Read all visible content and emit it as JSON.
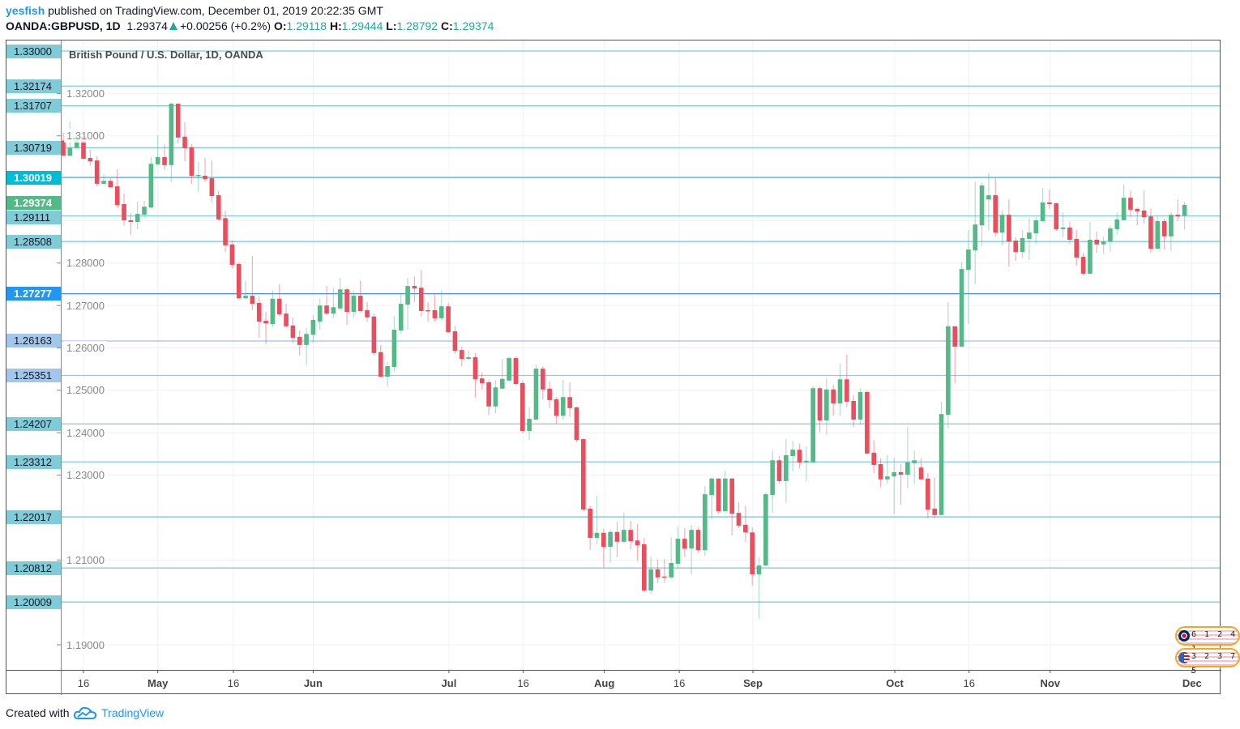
{
  "header": {
    "publisher": "yesfish",
    "published_text": "published on TradingView.com, December 01, 2019 20:22:35 GMT",
    "symbol": "OANDA:GBPUSD, 1D",
    "last": "1.29374",
    "change": "+0.00256 (+0.2%)",
    "o_label": "O:",
    "o": "1.29118",
    "h_label": "H:",
    "h": "1.29444",
    "l_label": "L:",
    "l": "1.28792",
    "c_label": "C:",
    "c": "1.29374"
  },
  "legend": "British Pound / U.S. Dollar, 1D, OANDA",
  "footer": {
    "created_with": "Created with",
    "brand": "TradingView"
  },
  "events": [
    {
      "flag": "uk-flag-icon",
      "counts": "6 1 2 4 1"
    },
    {
      "flag": "us-flag-icon",
      "counts": "3 2 3 7 5"
    }
  ],
  "colors": {
    "up": "#53b987",
    "down": "#eb4d5c",
    "level": "#80cbd8",
    "grid": "#eef2f6"
  },
  "chart_data": {
    "type": "candlestick",
    "title": "British Pound / U.S. Dollar, 1D, OANDA",
    "ylim": [
      1.19,
      1.33
    ],
    "grid": true,
    "y_ticks": [
      "1.32000",
      "1.31000",
      "1.28000",
      "1.27000",
      "1.26000",
      "1.25000",
      "1.24000",
      "1.23000",
      "1.21000",
      "1.19000"
    ],
    "x_ticks": [
      {
        "label": "16",
        "index": 3
      },
      {
        "label": "May",
        "index": 14
      },
      {
        "label": "16",
        "index": 25.2
      },
      {
        "label": "Jun",
        "index": 37
      },
      {
        "label": "Jul",
        "index": 57.1
      },
      {
        "label": "16",
        "index": 68.1
      },
      {
        "label": "Aug",
        "index": 80.1
      },
      {
        "label": "16",
        "index": 91.2
      },
      {
        "label": "Sep",
        "index": 102.1
      },
      {
        "label": "Oct",
        "index": 123.1
      },
      {
        "label": "16",
        "index": 134.1
      },
      {
        "label": "Nov",
        "index": 146.1
      },
      {
        "label": "Dec",
        "index": 167.1
      }
    ],
    "levels": [
      {
        "label": "1.33000",
        "style": "level"
      },
      {
        "label": "1.32174",
        "style": "level"
      },
      {
        "label": "1.31707",
        "style": "level"
      },
      {
        "label": "1.30719",
        "style": "level"
      },
      {
        "label": "1.30019",
        "style": "cyan"
      },
      {
        "label": "1.29374",
        "style": "last"
      },
      {
        "label": "1.29111",
        "style": "level"
      },
      {
        "label": "1.28508",
        "style": "level"
      },
      {
        "label": "1.27277",
        "style": "blue"
      },
      {
        "label": "1.26163",
        "style": "lightblue"
      },
      {
        "label": "1.25351",
        "style": "lightblue"
      },
      {
        "label": "1.24207",
        "style": "level"
      },
      {
        "label": "1.23312",
        "style": "level"
      },
      {
        "label": "1.22017",
        "style": "level"
      },
      {
        "label": "1.20812",
        "style": "level"
      },
      {
        "label": "1.20009",
        "style": "level"
      }
    ],
    "ohlc_fields": [
      "open",
      "high",
      "low",
      "close"
    ],
    "ohlc": [
      [
        1.3089,
        1.3108,
        1.3053,
        1.3053
      ],
      [
        1.3053,
        1.3134,
        1.3052,
        1.3072
      ],
      [
        1.3072,
        1.3118,
        1.3071,
        1.3099
      ],
      [
        1.3099,
        1.3101,
        1.3044,
        1.3046
      ],
      [
        1.3048,
        1.3067,
        1.3029,
        1.304
      ],
      [
        1.3042,
        1.3052,
        1.2981,
        1.2987
      ],
      [
        1.2987,
        1.301,
        1.2985,
        1.2994
      ],
      [
        1.2994,
        1.3,
        1.2977,
        1.2979
      ],
      [
        1.2981,
        1.3021,
        1.293,
        1.2937
      ],
      [
        1.2939,
        1.2964,
        1.2889,
        1.2901
      ],
      [
        1.2901,
        1.2918,
        1.2866,
        1.2897
      ],
      [
        1.2897,
        1.2945,
        1.288,
        1.2916
      ],
      [
        1.2914,
        1.2947,
        1.2907,
        1.2933
      ],
      [
        1.2931,
        1.305,
        1.2929,
        1.3034
      ],
      [
        1.3033,
        1.3101,
        1.3031,
        1.305
      ],
      [
        1.305,
        1.308,
        1.3019,
        1.3031
      ],
      [
        1.3031,
        1.3178,
        1.2991,
        1.3176
      ],
      [
        1.3176,
        1.3176,
        1.3082,
        1.3096
      ],
      [
        1.3098,
        1.3132,
        1.304,
        1.3071
      ],
      [
        1.3073,
        1.308,
        1.2987,
        1.3006
      ],
      [
        1.3006,
        1.3038,
        1.2968,
        1.3008
      ],
      [
        1.3006,
        1.3048,
        1.2992,
        1.2998
      ],
      [
        1.3,
        1.3042,
        1.2943,
        1.2958
      ],
      [
        1.296,
        1.2971,
        1.2901,
        1.2903
      ],
      [
        1.2906,
        1.2924,
        1.2826,
        1.2842
      ],
      [
        1.2844,
        1.2853,
        1.2788,
        1.2796
      ],
      [
        1.2798,
        1.2802,
        1.2715,
        1.2717
      ],
      [
        1.2717,
        1.2758,
        1.2715,
        1.2723
      ],
      [
        1.2723,
        1.2817,
        1.2689,
        1.2704
      ],
      [
        1.2706,
        1.2721,
        1.2624,
        1.2662
      ],
      [
        1.2664,
        1.2685,
        1.2609,
        1.2658
      ],
      [
        1.2656,
        1.2735,
        1.2649,
        1.2716
      ],
      [
        1.2716,
        1.275,
        1.2675,
        1.2679
      ],
      [
        1.2681,
        1.2704,
        1.2649,
        1.2651
      ],
      [
        1.2653,
        1.2672,
        1.2612,
        1.2624
      ],
      [
        1.2626,
        1.2641,
        1.2582,
        1.2607
      ],
      [
        1.2607,
        1.2647,
        1.2559,
        1.2633
      ],
      [
        1.2631,
        1.2677,
        1.2612,
        1.2666
      ],
      [
        1.2662,
        1.2716,
        1.2643,
        1.27
      ],
      [
        1.27,
        1.2746,
        1.2679,
        1.2681
      ],
      [
        1.2681,
        1.2742,
        1.267,
        1.2696
      ],
      [
        1.2693,
        1.2765,
        1.2689,
        1.2738
      ],
      [
        1.2738,
        1.2742,
        1.2654,
        1.2685
      ],
      [
        1.2685,
        1.2735,
        1.2672,
        1.2723
      ],
      [
        1.2723,
        1.2759,
        1.2683,
        1.2687
      ],
      [
        1.2689,
        1.2708,
        1.2662,
        1.2672
      ],
      [
        1.2674,
        1.2681,
        1.2582,
        1.2588
      ],
      [
        1.259,
        1.2607,
        1.2532,
        1.2532
      ],
      [
        1.2532,
        1.2567,
        1.2509,
        1.2557
      ],
      [
        1.2555,
        1.2674,
        1.2544,
        1.2643
      ],
      [
        1.2641,
        1.2727,
        1.2633,
        1.2704
      ],
      [
        1.2702,
        1.2765,
        1.2643,
        1.2746
      ],
      [
        1.2746,
        1.2769,
        1.2708,
        1.274
      ],
      [
        1.2742,
        1.2784,
        1.2674,
        1.2687
      ],
      [
        1.2689,
        1.2708,
        1.2662,
        1.2687
      ],
      [
        1.2689,
        1.2727,
        1.2662,
        1.267
      ],
      [
        1.267,
        1.2737,
        1.2666,
        1.2698
      ],
      [
        1.2698,
        1.2706,
        1.2635,
        1.2637
      ],
      [
        1.2639,
        1.2651,
        1.2586,
        1.2593
      ],
      [
        1.2595,
        1.2603,
        1.2557,
        1.2574
      ],
      [
        1.2574,
        1.2593,
        1.2572,
        1.2578
      ],
      [
        1.2578,
        1.2588,
        1.2483,
        1.2526
      ],
      [
        1.2528,
        1.2542,
        1.2502,
        1.2517
      ],
      [
        1.2519,
        1.2525,
        1.2441,
        1.2462
      ],
      [
        1.2462,
        1.2523,
        1.2446,
        1.2507
      ],
      [
        1.2504,
        1.2574,
        1.2502,
        1.2527
      ],
      [
        1.2523,
        1.258,
        1.2521,
        1.2576
      ],
      [
        1.2576,
        1.258,
        1.2513,
        1.2515
      ],
      [
        1.2517,
        1.2523,
        1.24,
        1.2404
      ],
      [
        1.2404,
        1.246,
        1.2383,
        1.2433
      ],
      [
        1.2431,
        1.2561,
        1.2431,
        1.2551
      ],
      [
        1.2551,
        1.2557,
        1.2479,
        1.2502
      ],
      [
        1.2504,
        1.2521,
        1.2458,
        1.2477
      ],
      [
        1.2479,
        1.2484,
        1.2421,
        1.244
      ],
      [
        1.244,
        1.2525,
        1.2431,
        1.2484
      ],
      [
        1.2484,
        1.2519,
        1.2437,
        1.2458
      ],
      [
        1.246,
        1.2461,
        1.2377,
        1.2383
      ],
      [
        1.2385,
        1.2387,
        1.2215,
        1.2219
      ],
      [
        1.2221,
        1.2229,
        1.2124,
        1.2152
      ],
      [
        1.2152,
        1.2251,
        1.2137,
        1.2164
      ],
      [
        1.2164,
        1.2173,
        1.2083,
        1.2131
      ],
      [
        1.2131,
        1.2171,
        1.2093,
        1.2166
      ],
      [
        1.2166,
        1.219,
        1.2106,
        1.2143
      ],
      [
        1.2143,
        1.2211,
        1.2139,
        1.2171
      ],
      [
        1.2171,
        1.2192,
        1.2125,
        1.2144
      ],
      [
        1.2146,
        1.2185,
        1.2098,
        1.2135
      ],
      [
        1.2137,
        1.2152,
        1.2026,
        1.2028
      ],
      [
        1.2028,
        1.2108,
        1.202,
        1.2078
      ],
      [
        1.2078,
        1.2101,
        1.2045,
        1.2059
      ],
      [
        1.2061,
        1.2102,
        1.2047,
        1.2059
      ],
      [
        1.2059,
        1.2154,
        1.2055,
        1.2093
      ],
      [
        1.2091,
        1.2179,
        1.208,
        1.215
      ],
      [
        1.215,
        1.2175,
        1.2108,
        1.2127
      ],
      [
        1.2127,
        1.2183,
        1.2066,
        1.2171
      ],
      [
        1.2171,
        1.2177,
        1.2116,
        1.2123
      ],
      [
        1.2123,
        1.2274,
        1.211,
        1.2255
      ],
      [
        1.2253,
        1.2295,
        1.2196,
        1.2292
      ],
      [
        1.2292,
        1.2292,
        1.2209,
        1.2215
      ],
      [
        1.2215,
        1.2311,
        1.2211,
        1.2292
      ],
      [
        1.2292,
        1.2294,
        1.2158,
        1.2209
      ],
      [
        1.2211,
        1.2236,
        1.2175,
        1.2181
      ],
      [
        1.2183,
        1.2227,
        1.2142,
        1.2165
      ],
      [
        1.2165,
        1.2177,
        1.2039,
        1.2066
      ],
      [
        1.2066,
        1.2108,
        1.1961,
        1.2087
      ],
      [
        1.2087,
        1.2259,
        1.2085,
        1.2255
      ],
      [
        1.2253,
        1.2357,
        1.2211,
        1.2335
      ],
      [
        1.2335,
        1.2345,
        1.228,
        1.2286
      ],
      [
        1.2286,
        1.2385,
        1.2234,
        1.2347
      ],
      [
        1.2345,
        1.2381,
        1.2309,
        1.236
      ],
      [
        1.236,
        1.2374,
        1.2316,
        1.233
      ],
      [
        1.233,
        1.2368,
        1.2286,
        1.2334
      ],
      [
        1.233,
        1.2509,
        1.233,
        1.2505
      ],
      [
        1.2505,
        1.2509,
        1.2402,
        1.2429
      ],
      [
        1.2429,
        1.2528,
        1.2395,
        1.2502
      ],
      [
        1.2502,
        1.2513,
        1.244,
        1.2469
      ],
      [
        1.2469,
        1.2563,
        1.244,
        1.2526
      ],
      [
        1.2526,
        1.2584,
        1.2461,
        1.2473
      ],
      [
        1.2475,
        1.2488,
        1.2414,
        1.2431
      ],
      [
        1.2431,
        1.2505,
        1.2418,
        1.2496
      ],
      [
        1.2496,
        1.25,
        1.2349,
        1.2351
      ],
      [
        1.2353,
        1.2383,
        1.2305,
        1.2324
      ],
      [
        1.2326,
        1.2339,
        1.2272,
        1.229
      ],
      [
        1.229,
        1.2347,
        1.228,
        1.2297
      ],
      [
        1.2297,
        1.2341,
        1.2208,
        1.2307
      ],
      [
        1.2307,
        1.2326,
        1.223,
        1.2301
      ],
      [
        1.2301,
        1.2414,
        1.2269,
        1.233
      ],
      [
        1.2328,
        1.2358,
        1.228,
        1.2335
      ],
      [
        1.2318,
        1.2339,
        1.2288,
        1.229
      ],
      [
        1.2292,
        1.2305,
        1.2198,
        1.2219
      ],
      [
        1.2221,
        1.2295,
        1.2198,
        1.2206
      ],
      [
        1.2206,
        1.2473,
        1.2206,
        1.2444
      ],
      [
        1.2442,
        1.2708,
        1.241,
        1.2651
      ],
      [
        1.2651,
        1.2651,
        1.2517,
        1.2603
      ],
      [
        1.2603,
        1.2802,
        1.2603,
        1.2786
      ],
      [
        1.2784,
        1.2878,
        1.2656,
        1.2832
      ],
      [
        1.283,
        1.2992,
        1.275,
        1.2891
      ],
      [
        1.2889,
        1.2989,
        1.284,
        1.2983
      ],
      [
        1.295,
        1.3013,
        1.2876,
        1.296
      ],
      [
        1.296,
        1.3,
        1.2863,
        1.2872
      ],
      [
        1.2872,
        1.2924,
        1.2842,
        1.2914
      ],
      [
        1.2914,
        1.295,
        1.2792,
        1.2851
      ],
      [
        1.2853,
        1.2861,
        1.2805,
        1.2826
      ],
      [
        1.2826,
        1.2878,
        1.2813,
        1.2859
      ],
      [
        1.2857,
        1.2907,
        1.2807,
        1.2872
      ],
      [
        1.287,
        1.2908,
        1.2845,
        1.2901
      ],
      [
        1.2899,
        1.2977,
        1.2897,
        1.2943
      ],
      [
        1.2943,
        1.2973,
        1.2928,
        1.2939
      ],
      [
        1.2941,
        1.2943,
        1.2876,
        1.288
      ],
      [
        1.288,
        1.292,
        1.2861,
        1.2884
      ],
      [
        1.2884,
        1.2897,
        1.2845,
        1.2855
      ],
      [
        1.2857,
        1.2878,
        1.2794,
        1.2813
      ],
      [
        1.2815,
        1.2824,
        1.2771,
        1.2775
      ],
      [
        1.2775,
        1.2897,
        1.2775,
        1.2855
      ],
      [
        1.2855,
        1.2874,
        1.2824,
        1.2844
      ],
      [
        1.2844,
        1.2863,
        1.2822,
        1.2851
      ],
      [
        1.2851,
        1.2889,
        1.2826,
        1.2882
      ],
      [
        1.288,
        1.292,
        1.2866,
        1.2903
      ],
      [
        1.2901,
        1.2985,
        1.2901,
        1.2954
      ],
      [
        1.2954,
        1.2971,
        1.2908,
        1.2926
      ],
      [
        1.2928,
        1.2931,
        1.2889,
        1.2922
      ],
      [
        1.2924,
        1.2971,
        1.2893,
        1.2908
      ],
      [
        1.291,
        1.2929,
        1.2824,
        1.2834
      ],
      [
        1.2834,
        1.291,
        1.2832,
        1.2899
      ],
      [
        1.2899,
        1.2905,
        1.2832,
        1.2863
      ],
      [
        1.2863,
        1.292,
        1.2828,
        1.2914
      ],
      [
        1.2914,
        1.295,
        1.2899,
        1.291
      ],
      [
        1.29118,
        1.29444,
        1.28792,
        1.29374
      ]
    ]
  }
}
